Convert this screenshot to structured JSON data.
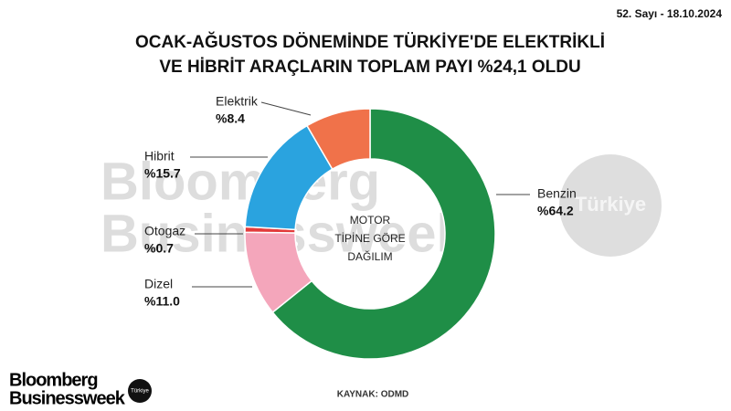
{
  "issue": "52. Sayı - 18.10.2024",
  "chart_data": {
    "type": "donut",
    "title": [
      "OCAK-AĞUSTOS DÖNEMİNDE TÜRKİYE'DE ELEKTRİKLİ",
      "VE HİBRİT ARAÇLARIN TOPLAM PAYI %24,1 OLDU"
    ],
    "center_label": [
      "MOTOR",
      "TİPİNE GÖRE",
      "DAĞILIM"
    ],
    "categories": [
      "Benzin",
      "Dizel",
      "Otogaz",
      "Hibrit",
      "Elektrik"
    ],
    "values": [
      64.2,
      11.0,
      0.7,
      15.7,
      8.4
    ],
    "value_labels": [
      "%64.2",
      "%11.0",
      "%0.7",
      "%15.7",
      "%8.4"
    ],
    "colors": [
      "#1f8e47",
      "#f4a6bb",
      "#e23b3b",
      "#2aa3df",
      "#f0724a"
    ],
    "source": "KAYNAK: ODMD"
  },
  "watermark": {
    "brand": [
      "Bloomberg",
      "Businessweek"
    ],
    "edition": "Türkiye"
  },
  "logo": {
    "brand": [
      "Bloomberg",
      "Businessweek"
    ],
    "edition": "Türkiye"
  }
}
